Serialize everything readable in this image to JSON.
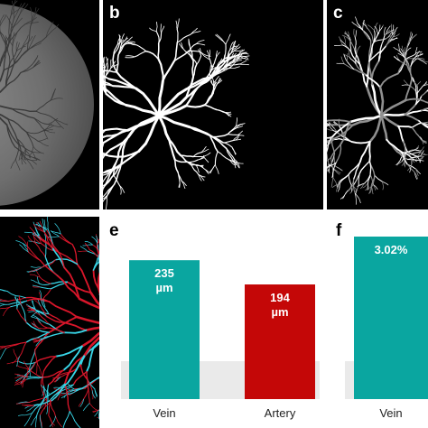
{
  "panels": {
    "a": {
      "letter": ""
    },
    "b": {
      "letter": "b"
    },
    "c": {
      "letter": "c"
    },
    "d": {
      "letter": ""
    },
    "e": {
      "letter": "e"
    },
    "f": {
      "letter": "f"
    }
  },
  "colors": {
    "vein": "#0aa6a0",
    "artery": "#c40707",
    "vein_overlay": "#38d6e8",
    "artery_overlay": "#d8162a",
    "vessel_white": "#ffffff",
    "vessel_gray": "#8f8f8f",
    "fundus": "#6b6b6b",
    "background_dark": "#000000"
  },
  "chart_data": [
    {
      "panel": "e",
      "type": "bar",
      "categories": [
        "Vein",
        "Artery"
      ],
      "values": [
        235,
        194
      ],
      "value_labels": [
        [
          "235",
          "µm"
        ],
        [
          "194",
          "µm"
        ]
      ],
      "ylim": [
        0,
        275
      ],
      "title": "",
      "xlabel": "",
      "ylabel": "",
      "grid": false
    },
    {
      "panel": "f",
      "type": "bar",
      "categories": [
        "Vein"
      ],
      "values": [
        3.02
      ],
      "value_labels": [
        [
          "3.02%"
        ]
      ],
      "title": "",
      "xlabel": "",
      "ylabel": "",
      "grid": false
    }
  ]
}
